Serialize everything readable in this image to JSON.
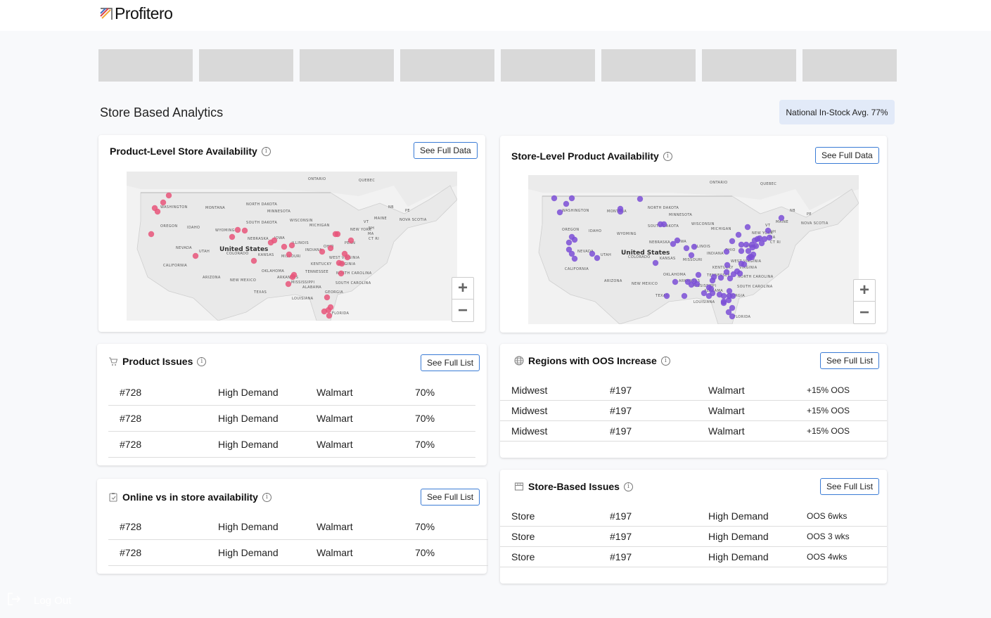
{
  "app": {
    "brand": "Profitero"
  },
  "page": {
    "section_title": "Store Based Analytics",
    "national_badge": "National In-Stock Avg. 77%",
    "placeholder_count": 8
  },
  "colors": {
    "accent_border": "#3a7bd5",
    "product_dot": "#e8557a",
    "store_dot": "#7b4fd6",
    "badge_bg": "#e2eaf8"
  },
  "product_map": {
    "title": "Product-Level Store Availability",
    "button": "See Full Data",
    "zoom_in": "+",
    "zoom_out": "−",
    "country_label": "United States",
    "labels": [
      "ONTARIO",
      "QUEBEC",
      "WASHINGTON",
      "MONTANA",
      "NORTH DAKOTA",
      "MINNESOTA",
      "SOUTH DAKOTA",
      "WISCONSIN",
      "MICHIGAN",
      "NEW YORK",
      "MAINE",
      "NB",
      "PE",
      "NOVA SCOTIA",
      "VT",
      "NH",
      "MA",
      "CT RI",
      "OREGON",
      "IDAHO",
      "WYOMING",
      "NEBRASKA",
      "IOWA",
      "ILLINOIS",
      "INDIANA",
      "OHIO",
      "PENN",
      "NEVADA",
      "UTAH",
      "COLORADO",
      "KANSAS",
      "MISSOURI",
      "WEST VIRGINIA",
      "VIRGINIA",
      "KENTUCKY",
      "CALIFORNIA",
      "OKLAHOMA",
      "ARKANSAS",
      "TENNESSEE",
      "NORTH CAROLINA",
      "ARIZONA",
      "NEW MEXICO",
      "MISSISSIPPI",
      "ALABAMA",
      "SOUTH CAROLINA",
      "TEXAS",
      "GEORGIA",
      "LOUISIANA",
      "FLORIDA"
    ]
  },
  "store_map": {
    "title": "Store-Level Product Availability",
    "button": "See Full Data",
    "zoom_in": "+",
    "zoom_out": "−",
    "country_label": "United States"
  },
  "product_issues": {
    "title": "Product Issues",
    "button": "See Full List",
    "rows": [
      [
        "#728",
        "High Demand",
        "Walmart",
        "70%"
      ],
      [
        "#728",
        "High Demand",
        "Walmart",
        "70%"
      ],
      [
        "#728",
        "High Demand",
        "Walmart",
        "70%"
      ]
    ]
  },
  "online_vs_store": {
    "title": "Online vs in store availability",
    "button": "See Full List",
    "rows": [
      [
        "#728",
        "High Demand",
        "Walmart",
        "70%"
      ],
      [
        "#728",
        "High Demand",
        "Walmart",
        "70%"
      ]
    ]
  },
  "regions_oos": {
    "title": "Regions with OOS Increase",
    "button": "See Full List",
    "rows": [
      [
        "Midwest",
        "#197",
        "Walmart",
        "+15% OOS"
      ],
      [
        "Midwest",
        "#197",
        "Walmart",
        "+15% OOS"
      ],
      [
        "Midwest",
        "#197",
        "Walmart",
        "+15% OOS"
      ]
    ]
  },
  "store_issues": {
    "title": "Store-Based Issues",
    "button": "See Full List",
    "rows": [
      [
        "Store",
        "#197",
        "High Demand",
        "OOS 6wks"
      ],
      [
        "Store",
        "#197",
        "High Demand",
        "OOS 3 wks"
      ],
      [
        "Store",
        "#197",
        "High Demand",
        "OOS 4wks"
      ]
    ]
  },
  "sidebar": {
    "logout_label": "Log Out"
  }
}
